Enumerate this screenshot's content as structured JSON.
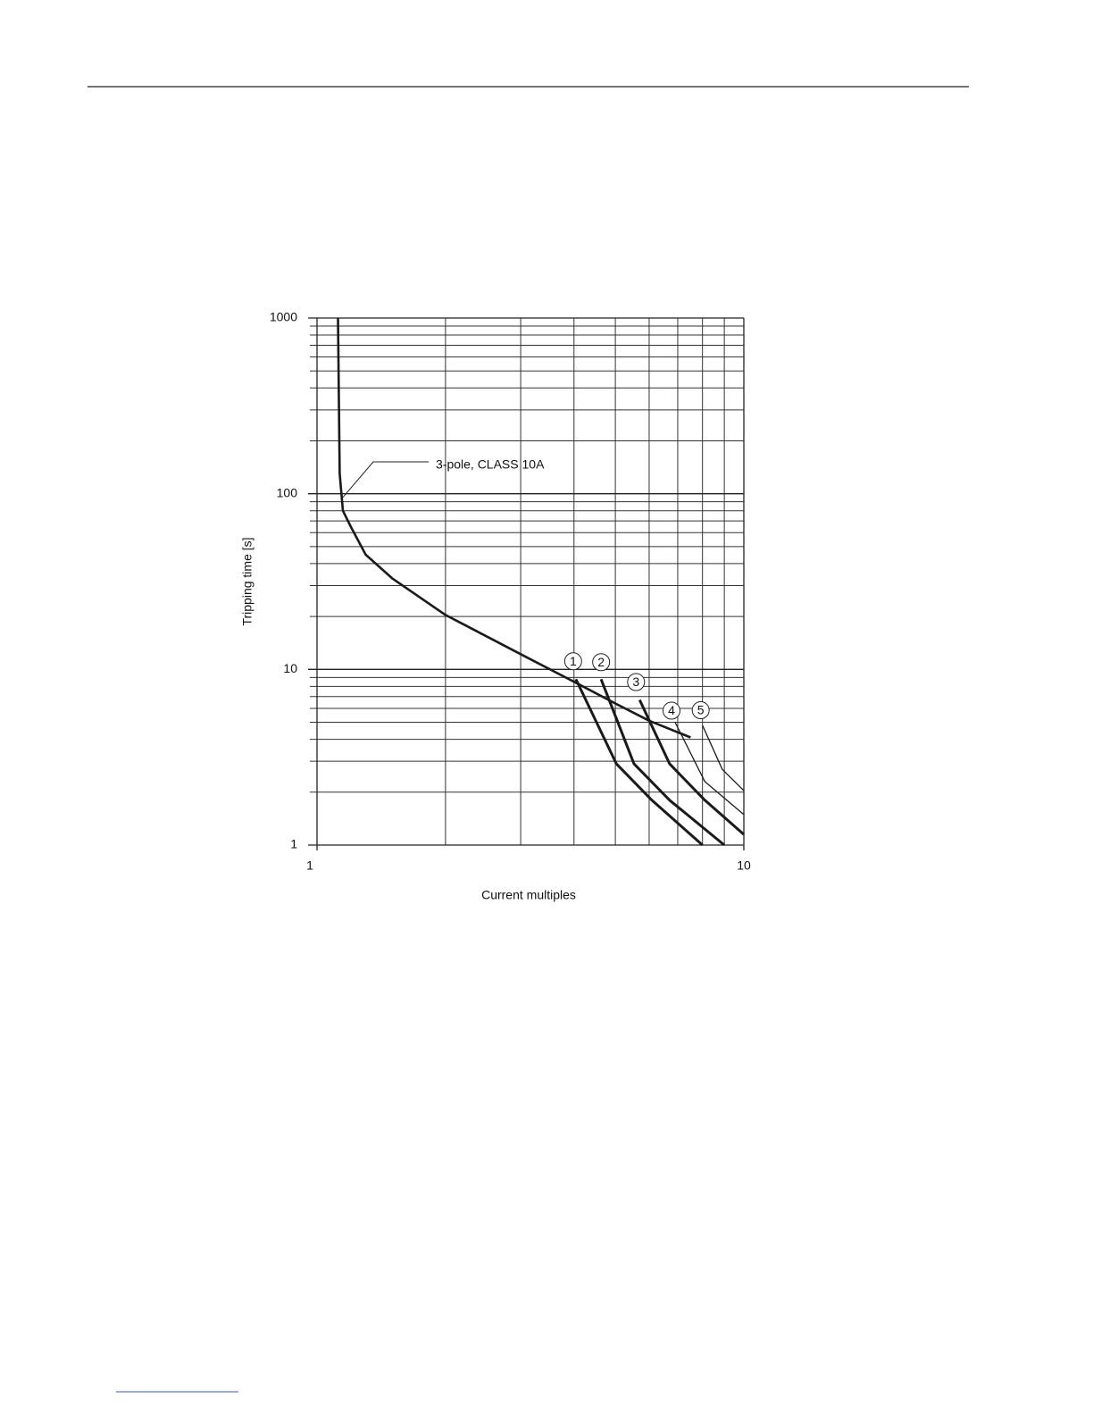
{
  "chart_data": {
    "type": "line",
    "xlabel": "Current multiples",
    "ylabel": "Tripping time [s]",
    "xscale": "log",
    "yscale": "log",
    "grid": true,
    "xlim": [
      1,
      10
    ],
    "ylim": [
      1,
      1000
    ],
    "xticks": [
      1,
      10
    ],
    "yticks": [
      1,
      10,
      100,
      1000
    ],
    "x_minor_ticks": [
      2,
      3,
      4,
      5,
      6,
      7,
      8,
      9
    ],
    "y_minor_ticks": [
      2,
      3,
      4,
      5,
      6,
      7,
      8,
      9,
      20,
      30,
      40,
      50,
      60,
      70,
      80,
      90,
      200,
      300,
      400,
      500,
      600,
      700,
      800,
      900
    ],
    "series": [
      {
        "name": "3-pole, CLASS 10A",
        "color": "#1a1a1a",
        "line_width": 2.6,
        "x": [
          1.12,
          1.13,
          1.15,
          1.2,
          1.3,
          1.5,
          2,
          3,
          4,
          5,
          6,
          7.5
        ],
        "values": [
          1000,
          130,
          80,
          65,
          45,
          33,
          20.4,
          12.2,
          8.5,
          6.4,
          5.1,
          4.1
        ]
      },
      {
        "name": "1",
        "color": "#1a1a1a",
        "line_width": 3,
        "x": [
          4.04,
          5.03,
          6.09,
          8.0
        ],
        "values": [
          8.8,
          2.9,
          1.8,
          1
        ]
      },
      {
        "name": "2",
        "color": "#1a1a1a",
        "line_width": 3,
        "x": [
          4.63,
          5.53,
          6.7,
          9.0
        ],
        "values": [
          8.8,
          2.9,
          1.8,
          1
        ]
      },
      {
        "name": "3",
        "color": "#1a1a1a",
        "line_width": 3,
        "x": [
          5.7,
          6.7,
          8.1,
          10
        ],
        "values": [
          6.7,
          2.9,
          1.8,
          1.15
        ]
      },
      {
        "name": "4",
        "color": "#1a1a1a",
        "line_width": 1.3,
        "x": [
          6.9,
          8.1,
          10
        ],
        "values": [
          5.0,
          2.3,
          1.49
        ]
      },
      {
        "name": "5",
        "color": "#1a1a1a",
        "line_width": 1.3,
        "x": [
          8.0,
          8.9,
          10
        ],
        "values": [
          4.8,
          2.7,
          2.04
        ]
      }
    ]
  }
}
